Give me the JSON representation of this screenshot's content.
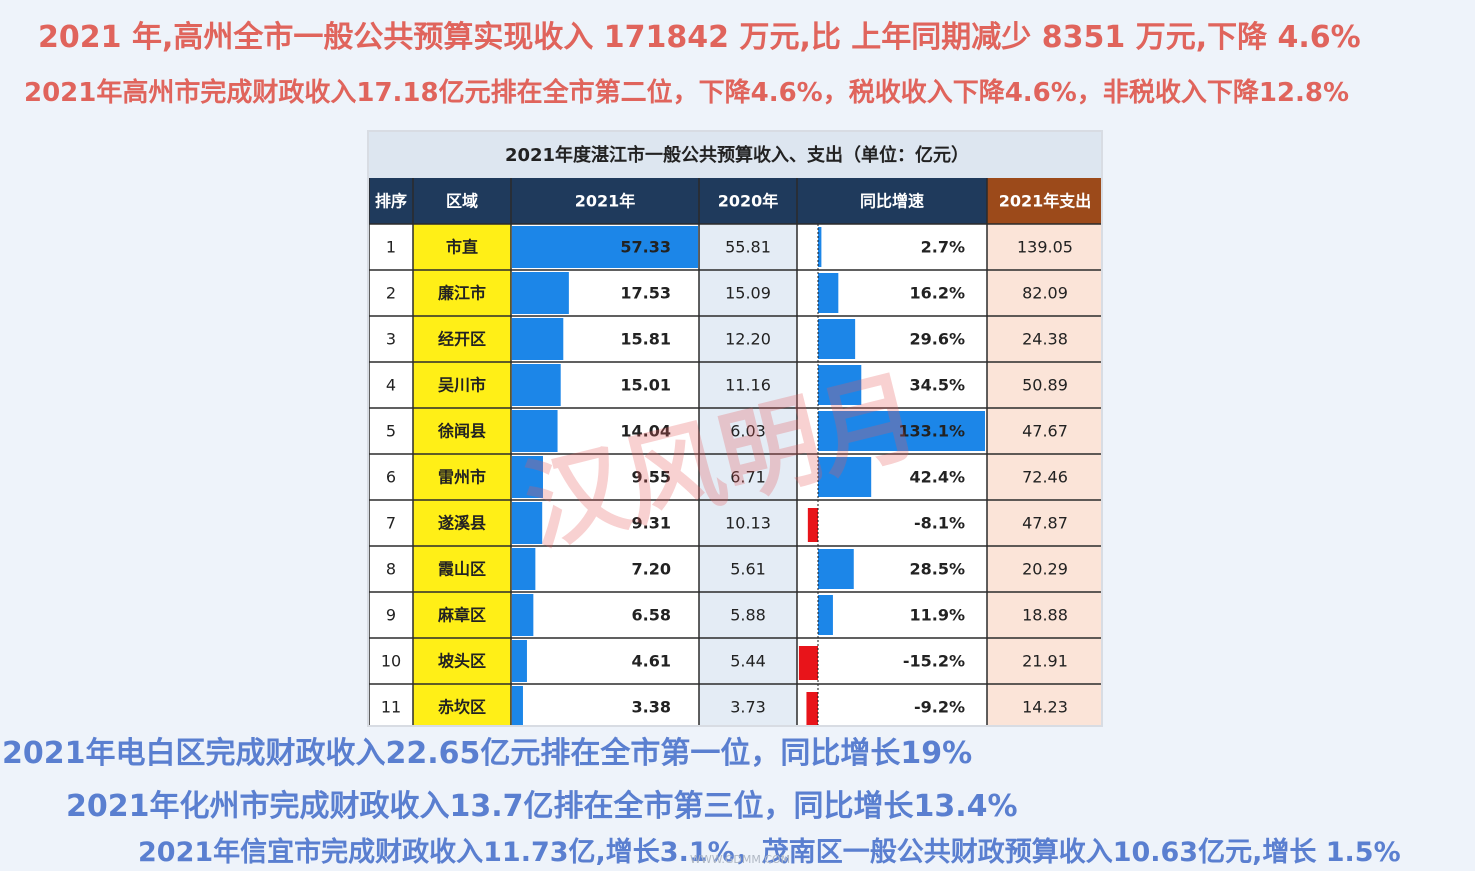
{
  "headlines": {
    "top1": "2021 年,高州全市一般公共预算实现收入 171842 万元,比 上年同期减少 8351 万元,下降 4.6%",
    "top2": "2021年高州市完成财政收入17.18亿元排在全市第二位，下降4.6%，税收收入下降4.6%，非税收入下降12.8%",
    "bottom1": "2021年电白区完成财政收入22.65亿元排在全市第一位，同比增长19%",
    "bottom2": "2021年化州市完成财政收入13.7亿排在全市第三位，同比增长13.4%",
    "bottom3": "2021年信宜市完成财政收入11.73亿,增长3.1%，茂南区一般公共财政预算收入10.63亿元,增长 1.5%"
  },
  "watermark": "汉风明月",
  "credit": "WWW.GDMM.COM",
  "colors": {
    "header_bg": "#1f3a5c",
    "header_last_bg": "#9c4a1a",
    "title_bg": "#dde6f0",
    "region_bg": "#ffef17",
    "bar_blue": "#1c86e8",
    "bar_red": "#e8141a",
    "expense_bg": "#fbe4d8",
    "prev_bg": "#e4ecf5"
  },
  "chart_data": {
    "type": "table",
    "title": "2021年度湛江市一般公共预算收入、支出（单位：亿元）",
    "columns": [
      "排序",
      "区域",
      "2021年",
      "2020年",
      "同比增速",
      "2021年支出"
    ],
    "rows": [
      {
        "rank": "1",
        "region": "市直",
        "y2021": 57.33,
        "y2021_text": "57.33",
        "y2020": "55.81",
        "growth": 2.7,
        "growth_text": "2.7%",
        "expense": "139.05"
      },
      {
        "rank": "2",
        "region": "廉江市",
        "y2021": 17.53,
        "y2021_text": "17.53",
        "y2020": "15.09",
        "growth": 16.2,
        "growth_text": "16.2%",
        "expense": "82.09"
      },
      {
        "rank": "3",
        "region": "经开区",
        "y2021": 15.81,
        "y2021_text": "15.81",
        "y2020": "12.20",
        "growth": 29.6,
        "growth_text": "29.6%",
        "expense": "24.38"
      },
      {
        "rank": "4",
        "region": "吴川市",
        "y2021": 15.01,
        "y2021_text": "15.01",
        "y2020": "11.16",
        "growth": 34.5,
        "growth_text": "34.5%",
        "expense": "50.89"
      },
      {
        "rank": "5",
        "region": "徐闻县",
        "y2021": 14.04,
        "y2021_text": "14.04",
        "y2020": "6.03",
        "growth": 133.1,
        "growth_text": "133.1%",
        "expense": "47.67"
      },
      {
        "rank": "6",
        "region": "雷州市",
        "y2021": 9.55,
        "y2021_text": "9.55",
        "y2020": "6.71",
        "growth": 42.4,
        "growth_text": "42.4%",
        "expense": "72.46"
      },
      {
        "rank": "7",
        "region": "遂溪县",
        "y2021": 9.31,
        "y2021_text": "9.31",
        "y2020": "10.13",
        "growth": -8.1,
        "growth_text": "-8.1%",
        "expense": "47.87"
      },
      {
        "rank": "8",
        "region": "霞山区",
        "y2021": 7.2,
        "y2021_text": "7.20",
        "y2020": "5.61",
        "growth": 28.5,
        "growth_text": "28.5%",
        "expense": "20.29"
      },
      {
        "rank": "9",
        "region": "麻章区",
        "y2021": 6.58,
        "y2021_text": "6.58",
        "y2020": "5.88",
        "growth": 11.9,
        "growth_text": "11.9%",
        "expense": "18.88"
      },
      {
        "rank": "10",
        "region": "坡头区",
        "y2021": 4.61,
        "y2021_text": "4.61",
        "y2020": "5.44",
        "growth": -15.2,
        "growth_text": "-15.2%",
        "expense": "21.91"
      },
      {
        "rank": "11",
        "region": "赤坎区",
        "y2021": 3.38,
        "y2021_text": "3.38",
        "y2020": "3.73",
        "growth": -9.2,
        "growth_text": "-9.2%",
        "expense": "14.23"
      }
    ]
  }
}
